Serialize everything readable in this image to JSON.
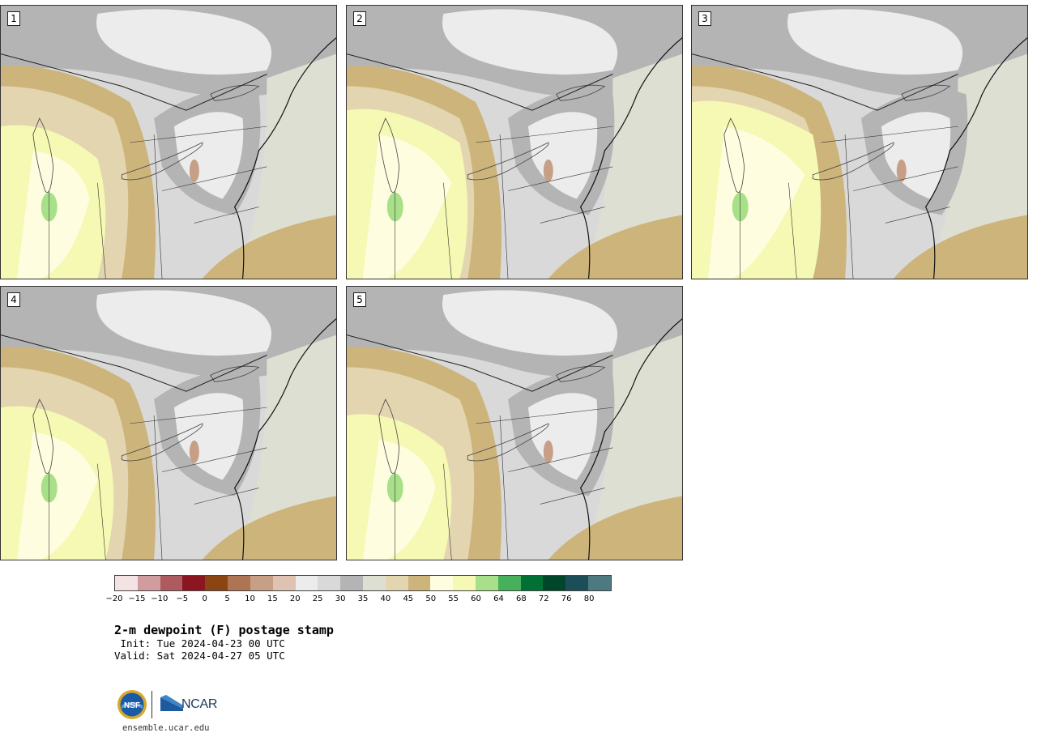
{
  "panels": [
    {
      "label": "1"
    },
    {
      "label": "2"
    },
    {
      "label": "3"
    },
    {
      "label": "4"
    },
    {
      "label": "5"
    }
  ],
  "colorbar": {
    "colors": [
      "#f3e3e3",
      "#d09c9e",
      "#ad5b5e",
      "#8b1520",
      "#8b4513",
      "#ad7553",
      "#c79f86",
      "#dfc2b2",
      "#ececec",
      "#d9d9d9",
      "#b4b4b4",
      "#dedfd3",
      "#e3d5b0",
      "#cdb47b",
      "#fffde0",
      "#f5f9b3",
      "#a8e08a",
      "#46b05c",
      "#007034",
      "#00462a",
      "#1c4e57",
      "#4c7a80"
    ],
    "ticks": [
      "−20",
      "−15",
      "−10",
      "−5",
      "0",
      "5",
      "10",
      "15",
      "20",
      "25",
      "30",
      "35",
      "40",
      "45",
      "50",
      "55",
      "60",
      "64",
      "68",
      "72",
      "76",
      "80"
    ]
  },
  "title": "2-m dewpoint (F) postage stamp",
  "init_line": " Init: Tue 2024-04-23 00 UTC",
  "valid_line": "Valid: Sat 2024-04-27 05 UTC",
  "logos": {
    "ncar_text": "NCAR",
    "nsf_text": "NSF"
  },
  "url": "ensemble.ucar.edu",
  "colors": {
    "dry_tan": "#cdb47b",
    "light_tan": "#e3d5b0",
    "moist_yellow": "#f5f9b3",
    "very_moist": "#fffde0",
    "gray_dark": "#b4b4b4",
    "gray_mid": "#d9d9d9",
    "gray_light": "#ececec",
    "green": "#a8e08a",
    "pinkish": "#c79f86"
  }
}
